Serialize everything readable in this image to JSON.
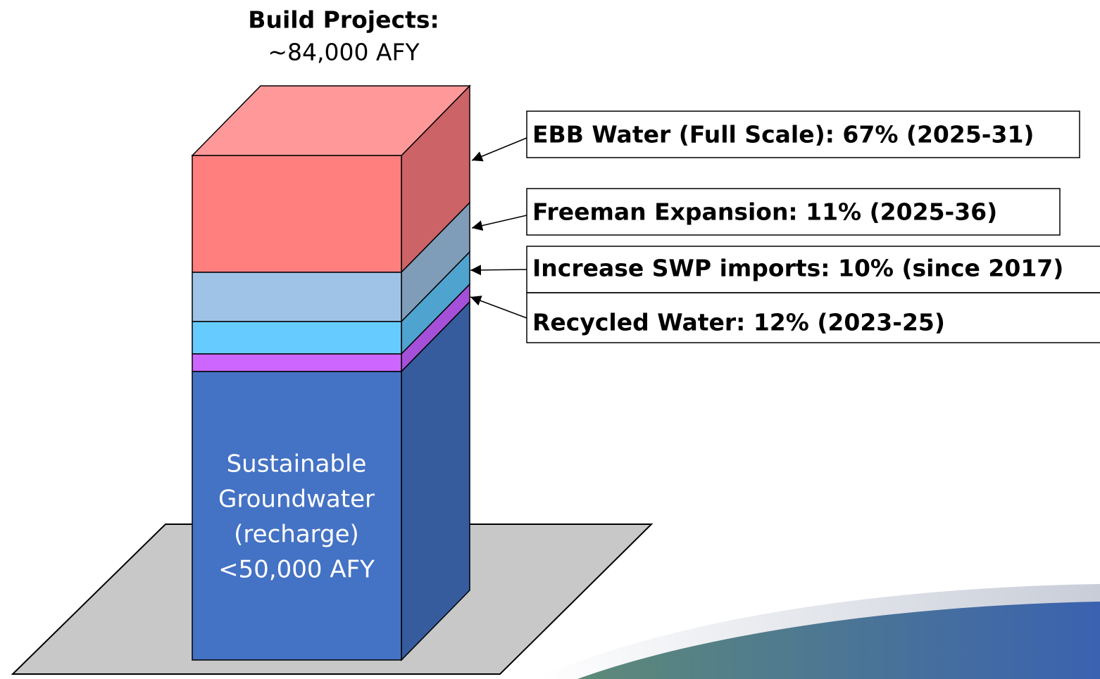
{
  "header": {
    "title": "Build Projects:",
    "subtitle": "~84,000 AFY"
  },
  "block_label": [
    "Sustainable",
    "Groundwater",
    "(recharge)",
    "<50,000 AFY"
  ],
  "callouts": [
    {
      "label": "EBB Water (Full Scale): 67% (2025-31)"
    },
    {
      "label": "Freeman Expansion: 11% (2025-36)"
    },
    {
      "label": "Increase SWP imports: 10% (since 2017)"
    },
    {
      "label": "Recycled Water: 12% (2023-25)"
    }
  ]
}
